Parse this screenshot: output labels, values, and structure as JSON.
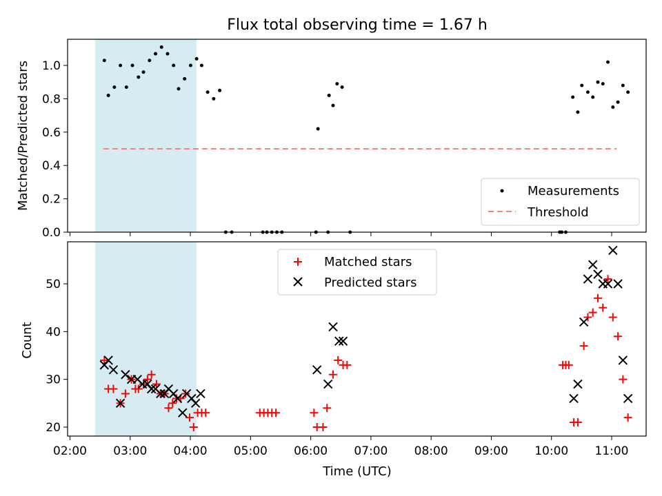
{
  "colors": {
    "span": "#add8e6",
    "threshold": "#ff7f7f",
    "matched": "#ff0000",
    "predicted": "#000000",
    "measurement": "#000000"
  },
  "chart_data": [
    {
      "type": "scatter",
      "title": "Flux total observing time = 1.67 h",
      "xlabel": "",
      "ylabel": "Matched/Predicted stars",
      "xlim": [
        "02:00",
        "11:30"
      ],
      "ylim": [
        0,
        1.15
      ],
      "yticks": [
        "0.0",
        "0.2",
        "0.4",
        "0.6",
        "0.8",
        "1.0"
      ],
      "legend_position": "lower-right",
      "shaded_span": {
        "from": "02:25",
        "to": "04:06"
      },
      "series": [
        {
          "name": "Measurements",
          "marker": "dot",
          "points": [
            [
              "02:26",
              1.03
            ],
            [
              "02:30",
              0.82
            ],
            [
              "02:36",
              0.87
            ],
            [
              "02:42",
              1.0
            ],
            [
              "02:48",
              0.87
            ],
            [
              "02:54",
              1.0
            ],
            [
              "03:00",
              0.93
            ],
            [
              "03:05",
              0.96
            ],
            [
              "03:11",
              1.03
            ],
            [
              "03:17",
              1.07
            ],
            [
              "03:23",
              1.11
            ],
            [
              "03:29",
              1.07
            ],
            [
              "03:35",
              1.0
            ],
            [
              "03:40",
              0.86
            ],
            [
              "03:46",
              0.92
            ],
            [
              "03:52",
              1.0
            ],
            [
              "03:58",
              1.04
            ],
            [
              "04:03",
              1.0
            ],
            [
              "04:09",
              0.84
            ],
            [
              "04:15",
              0.8
            ],
            [
              "04:21",
              0.85
            ],
            [
              "04:27",
              0.0
            ],
            [
              "04:33",
              0.0
            ],
            [
              "05:04",
              0.0
            ],
            [
              "05:08",
              0.0
            ],
            [
              "05:13",
              0.0
            ],
            [
              "05:18",
              0.0
            ],
            [
              "05:23",
              0.0
            ],
            [
              "05:57",
              0.0
            ],
            [
              "05:59",
              0.62
            ],
            [
              "06:09",
              0.0
            ],
            [
              "06:10",
              0.82
            ],
            [
              "06:14",
              0.76
            ],
            [
              "06:18",
              0.89
            ],
            [
              "06:23",
              0.87
            ],
            [
              "06:31",
              0.0
            ],
            [
              "10:00",
              0.0
            ],
            [
              "10:02",
              0.0
            ],
            [
              "10:06",
              0.0
            ],
            [
              "10:13",
              0.81
            ],
            [
              "10:18",
              0.72
            ],
            [
              "10:22",
              0.88
            ],
            [
              "10:28",
              0.84
            ],
            [
              "10:33",
              0.81
            ],
            [
              "10:38",
              0.9
            ],
            [
              "10:43",
              0.89
            ],
            [
              "10:48",
              1.02
            ],
            [
              "10:53",
              0.75
            ],
            [
              "10:58",
              0.78
            ],
            [
              "11:03",
              0.88
            ],
            [
              "11:08",
              0.84
            ]
          ]
        },
        {
          "name": "Threshold",
          "style": "dashed",
          "points": [
            [
              "02:25",
              0.5
            ],
            [
              "11:05",
              0.5
            ]
          ]
        }
      ]
    },
    {
      "type": "scatter",
      "title": "",
      "xlabel": "Time (UTC)",
      "ylabel": "Count",
      "xlim": [
        "02:00",
        "11:30"
      ],
      "ylim": [
        18,
        59
      ],
      "yticks": [
        "20",
        "30",
        "40",
        "50"
      ],
      "xticks": [
        "02:00",
        "03:00",
        "04:00",
        "05:00",
        "06:00",
        "07:00",
        "08:00",
        "09:00",
        "10:00",
        "11:00"
      ],
      "legend_position": "upper-center",
      "shaded_span": {
        "from": "02:25",
        "to": "04:06"
      },
      "series": [
        {
          "name": "Matched stars",
          "marker": "plus",
          "points": [
            [
              "02:26",
              34
            ],
            [
              "02:30",
              28
            ],
            [
              "02:35",
              28
            ],
            [
              "02:42",
              25
            ],
            [
              "02:47",
              27
            ],
            [
              "02:53",
              30
            ],
            [
              "02:57",
              28
            ],
            [
              "03:00",
              28
            ],
            [
              "03:05",
              29
            ],
            [
              "03:09",
              30
            ],
            [
              "03:13",
              31
            ],
            [
              "03:18",
              29
            ],
            [
              "03:22",
              27
            ],
            [
              "03:26",
              27
            ],
            [
              "03:30",
              24
            ],
            [
              "03:34",
              25
            ],
            [
              "03:38",
              26
            ],
            [
              "03:42",
              26
            ],
            [
              "03:47",
              27
            ],
            [
              "03:51",
              22
            ],
            [
              "03:55",
              20
            ],
            [
              "03:59",
              23
            ],
            [
              "04:03",
              23
            ],
            [
              "04:07",
              23
            ],
            [
              "05:01",
              23
            ],
            [
              "05:05",
              23
            ],
            [
              "05:09",
              23
            ],
            [
              "05:13",
              23
            ],
            [
              "05:17",
              23
            ],
            [
              "05:55",
              23
            ],
            [
              "05:58",
              20
            ],
            [
              "06:04",
              20
            ],
            [
              "06:08",
              24
            ],
            [
              "06:14",
              31
            ],
            [
              "06:19",
              34
            ],
            [
              "06:24",
              33
            ],
            [
              "06:28",
              33
            ],
            [
              "10:03",
              33
            ],
            [
              "10:06",
              33
            ],
            [
              "10:09",
              33
            ],
            [
              "10:14",
              21
            ],
            [
              "10:18",
              21
            ],
            [
              "10:24",
              37
            ],
            [
              "10:28",
              43
            ],
            [
              "10:33",
              44
            ],
            [
              "10:38",
              47
            ],
            [
              "10:43",
              45
            ],
            [
              "10:48",
              51
            ],
            [
              "10:53",
              43
            ],
            [
              "10:58",
              39
            ],
            [
              "11:03",
              30
            ],
            [
              "11:08",
              22
            ]
          ]
        },
        {
          "name": "Predicted stars",
          "marker": "x",
          "points": [
            [
              "02:26",
              33
            ],
            [
              "02:30",
              34
            ],
            [
              "02:35",
              32
            ],
            [
              "02:42",
              25
            ],
            [
              "02:47",
              31
            ],
            [
              "02:53",
              30
            ],
            [
              "02:59",
              30
            ],
            [
              "03:04",
              29
            ],
            [
              "03:09",
              29
            ],
            [
              "03:13",
              28
            ],
            [
              "03:17",
              28
            ],
            [
              "03:22",
              27
            ],
            [
              "03:26",
              27
            ],
            [
              "03:30",
              28
            ],
            [
              "03:35",
              27
            ],
            [
              "03:39",
              26
            ],
            [
              "03:44",
              23
            ],
            [
              "03:48",
              27
            ],
            [
              "03:53",
              26
            ],
            [
              "03:57",
              25
            ],
            [
              "04:02",
              27
            ],
            [
              "05:58",
              32
            ],
            [
              "06:09",
              29
            ],
            [
              "06:14",
              41
            ],
            [
              "06:20",
              38
            ],
            [
              "06:24",
              38
            ],
            [
              "10:14",
              26
            ],
            [
              "10:18",
              29
            ],
            [
              "10:24",
              42
            ],
            [
              "10:28",
              51
            ],
            [
              "10:33",
              54
            ],
            [
              "10:38",
              52
            ],
            [
              "10:43",
              50
            ],
            [
              "10:48",
              50
            ],
            [
              "10:53",
              57
            ],
            [
              "10:58",
              50
            ],
            [
              "11:03",
              34
            ],
            [
              "11:08",
              26
            ]
          ]
        }
      ]
    }
  ]
}
